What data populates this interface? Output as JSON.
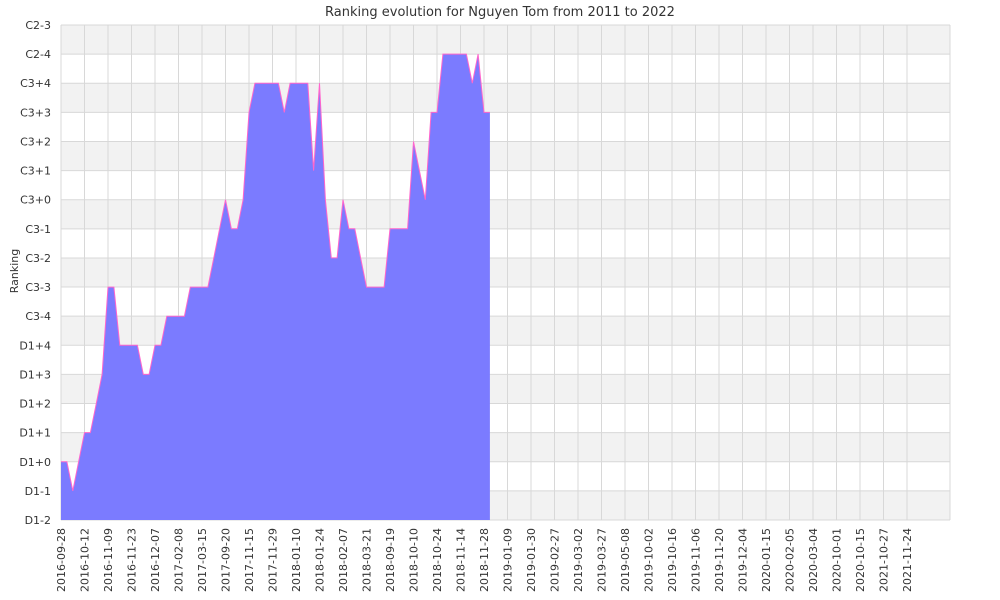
{
  "chart_data": {
    "type": "area",
    "title": "Ranking evolution for Nguyen Tom from 2011 to 2022",
    "ylabel": "Ranking",
    "xlabel": "",
    "grid": true,
    "legend": "none",
    "y_levels": [
      "D1-2",
      "D1-1",
      "D1+0",
      "D1+1",
      "D1+2",
      "D1+3",
      "D1+4",
      "C3-4",
      "C3-3",
      "C3-2",
      "C3-1",
      "C3+0",
      "C3+1",
      "C3+2",
      "C3+3",
      "C3+4",
      "C2-4",
      "C2-3"
    ],
    "x_tick_labels": [
      "2016-09-28",
      "2016-10-12",
      "2016-11-09",
      "2016-11-23",
      "2016-12-07",
      "2017-02-08",
      "2017-03-15",
      "2017-09-20",
      "2017-11-15",
      "2017-11-29",
      "2018-01-10",
      "2018-01-24",
      "2018-02-07",
      "2018-03-21",
      "2018-09-19",
      "2018-10-10",
      "2018-10-24",
      "2018-11-14",
      "2018-11-28",
      "2019-01-09",
      "2019-01-30",
      "2019-02-27",
      "2019-03-02",
      "2019-03-27",
      "2019-05-08",
      "2019-10-02",
      "2019-10-16",
      "2019-11-06",
      "2019-11-20",
      "2019-12-04",
      "2020-01-15",
      "2020-02-05",
      "2020-03-04",
      "2020-10-01",
      "2020-10-15",
      "2021-10-27",
      "2021-11-24"
    ],
    "series": [
      {
        "values": [
          2,
          2,
          1,
          2,
          3,
          3,
          4,
          5,
          8,
          8,
          6,
          6,
          6,
          6,
          5,
          5,
          6,
          6,
          7,
          7,
          7,
          7,
          8,
          8,
          8,
          8,
          9,
          10,
          11,
          10,
          10,
          11,
          14,
          15,
          15,
          15,
          15,
          15,
          14,
          15,
          15,
          15,
          15,
          12,
          15,
          11,
          9,
          9,
          11,
          10,
          10,
          9,
          8,
          8,
          8,
          8,
          10,
          10,
          10,
          10,
          13,
          12,
          11,
          14,
          14,
          16,
          16,
          16,
          16,
          16,
          15,
          16,
          14,
          14
        ],
        "x_positions": [
          0,
          0.5,
          1,
          1.5,
          2,
          2.5,
          3,
          3.5,
          4,
          4.5,
          5,
          5.5,
          6,
          6.5,
          7,
          7.5,
          8,
          8.5,
          9,
          9.5,
          10,
          10.5,
          11,
          11.5,
          12,
          12.5,
          13,
          13.5,
          14,
          14.5,
          15,
          15.5,
          16,
          16.5,
          17,
          17.5,
          18,
          18.5,
          19,
          19.5,
          20,
          20.5,
          21,
          21.5,
          22,
          22.5,
          23,
          23.5,
          24,
          24.5,
          25,
          25.5,
          26,
          26.5,
          27,
          27.5,
          28,
          28.5,
          29,
          29.5,
          30,
          30.5,
          31,
          31.5,
          32,
          32.5,
          33,
          33.5,
          34,
          34.5,
          35,
          35.5,
          36,
          36.5
        ]
      }
    ],
    "colors": {
      "fill": "#7b7bff",
      "stroke": "#ff66cc",
      "band": "#f2f2f2",
      "grid": "#d8d8d8"
    }
  }
}
